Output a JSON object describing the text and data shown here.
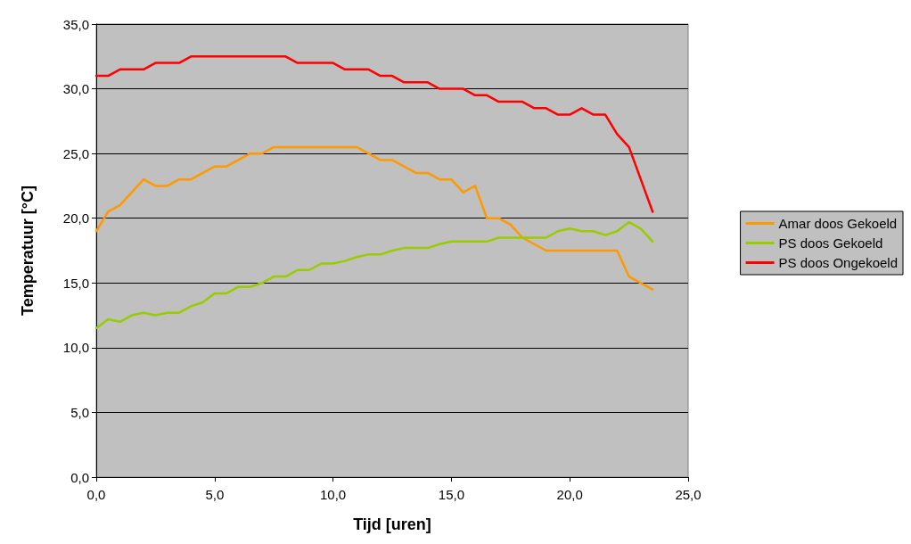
{
  "chart_data": {
    "type": "line",
    "xlabel": "Tijd [uren]",
    "ylabel": "Temperatuur [°C]",
    "x": [
      0,
      0.5,
      1,
      1.5,
      2,
      2.5,
      3,
      3.5,
      4,
      4.5,
      5,
      5.5,
      6,
      6.5,
      7,
      7.5,
      8,
      8.5,
      9,
      9.5,
      10,
      10.5,
      11,
      11.5,
      12,
      12.5,
      13,
      13.5,
      14,
      14.5,
      15,
      15.5,
      16,
      16.5,
      17,
      17.5,
      18,
      18.5,
      19,
      19.5,
      20,
      20.5,
      21,
      21.5,
      22,
      22.5,
      23,
      23.5
    ],
    "series": [
      {
        "name": "Amar doos Gekoeld",
        "color": "#ff9900",
        "values": [
          19,
          20.5,
          21,
          22,
          23,
          22.5,
          22.5,
          23,
          23,
          23.5,
          24,
          24,
          24.5,
          25,
          25,
          25.5,
          25.5,
          25.5,
          25.5,
          25.5,
          25.5,
          25.5,
          25.5,
          25,
          24.5,
          24.5,
          24,
          23.5,
          23.5,
          23,
          23,
          22,
          22.5,
          20,
          20,
          19.5,
          18.5,
          18,
          17.5,
          17.5,
          17.5,
          17.5,
          17.5,
          17.5,
          17.5,
          15.5,
          15,
          14.5
        ]
      },
      {
        "name": "PS doos Gekoeld",
        "color": "#99cc00",
        "values": [
          11.5,
          12.2,
          12,
          12.5,
          12.7,
          12.5,
          12.7,
          12.7,
          13.2,
          13.5,
          14.2,
          14.2,
          14.7,
          14.7,
          15,
          15.5,
          15.5,
          16,
          16,
          16.5,
          16.5,
          16.7,
          17,
          17.2,
          17.2,
          17.5,
          17.7,
          17.7,
          17.7,
          18,
          18.2,
          18.2,
          18.2,
          18.2,
          18.5,
          18.5,
          18.5,
          18.5,
          18.5,
          19,
          19.2,
          19,
          19,
          18.7,
          19,
          19.7,
          19.2,
          18.2
        ]
      },
      {
        "name": "PS doos Ongekoeld",
        "color": "#ff0000",
        "values": [
          31,
          31,
          31.5,
          31.5,
          31.5,
          32,
          32,
          32,
          32.5,
          32.5,
          32.5,
          32.5,
          32.5,
          32.5,
          32.5,
          32.5,
          32.5,
          32,
          32,
          32,
          32,
          31.5,
          31.5,
          31.5,
          31,
          31,
          30.5,
          30.5,
          30.5,
          30,
          30,
          30,
          29.5,
          29.5,
          29,
          29,
          29,
          28.5,
          28.5,
          28,
          28,
          28.5,
          28,
          28,
          26.5,
          25.5,
          23,
          20.5
        ]
      }
    ],
    "xlim": [
      0,
      25
    ],
    "xticks": [
      {
        "value": 0,
        "label": "0,0"
      },
      {
        "value": 5,
        "label": "5,0"
      },
      {
        "value": 10,
        "label": "10,0"
      },
      {
        "value": 15,
        "label": "15,0"
      },
      {
        "value": 20,
        "label": "20,0"
      },
      {
        "value": 25,
        "label": "25,0"
      }
    ],
    "ylim": [
      0,
      35
    ],
    "yticks": [
      {
        "value": 0,
        "label": "0,0"
      },
      {
        "value": 5,
        "label": "5,0"
      },
      {
        "value": 10,
        "label": "10,0"
      },
      {
        "value": 15,
        "label": "15,0"
      },
      {
        "value": 20,
        "label": "20,0"
      },
      {
        "value": 25,
        "label": "25,0"
      },
      {
        "value": 30,
        "label": "30,0"
      },
      {
        "value": 35,
        "label": "35,0"
      }
    ],
    "grid": "y",
    "legend": "right",
    "marker": "none",
    "line_style": "solid"
  }
}
